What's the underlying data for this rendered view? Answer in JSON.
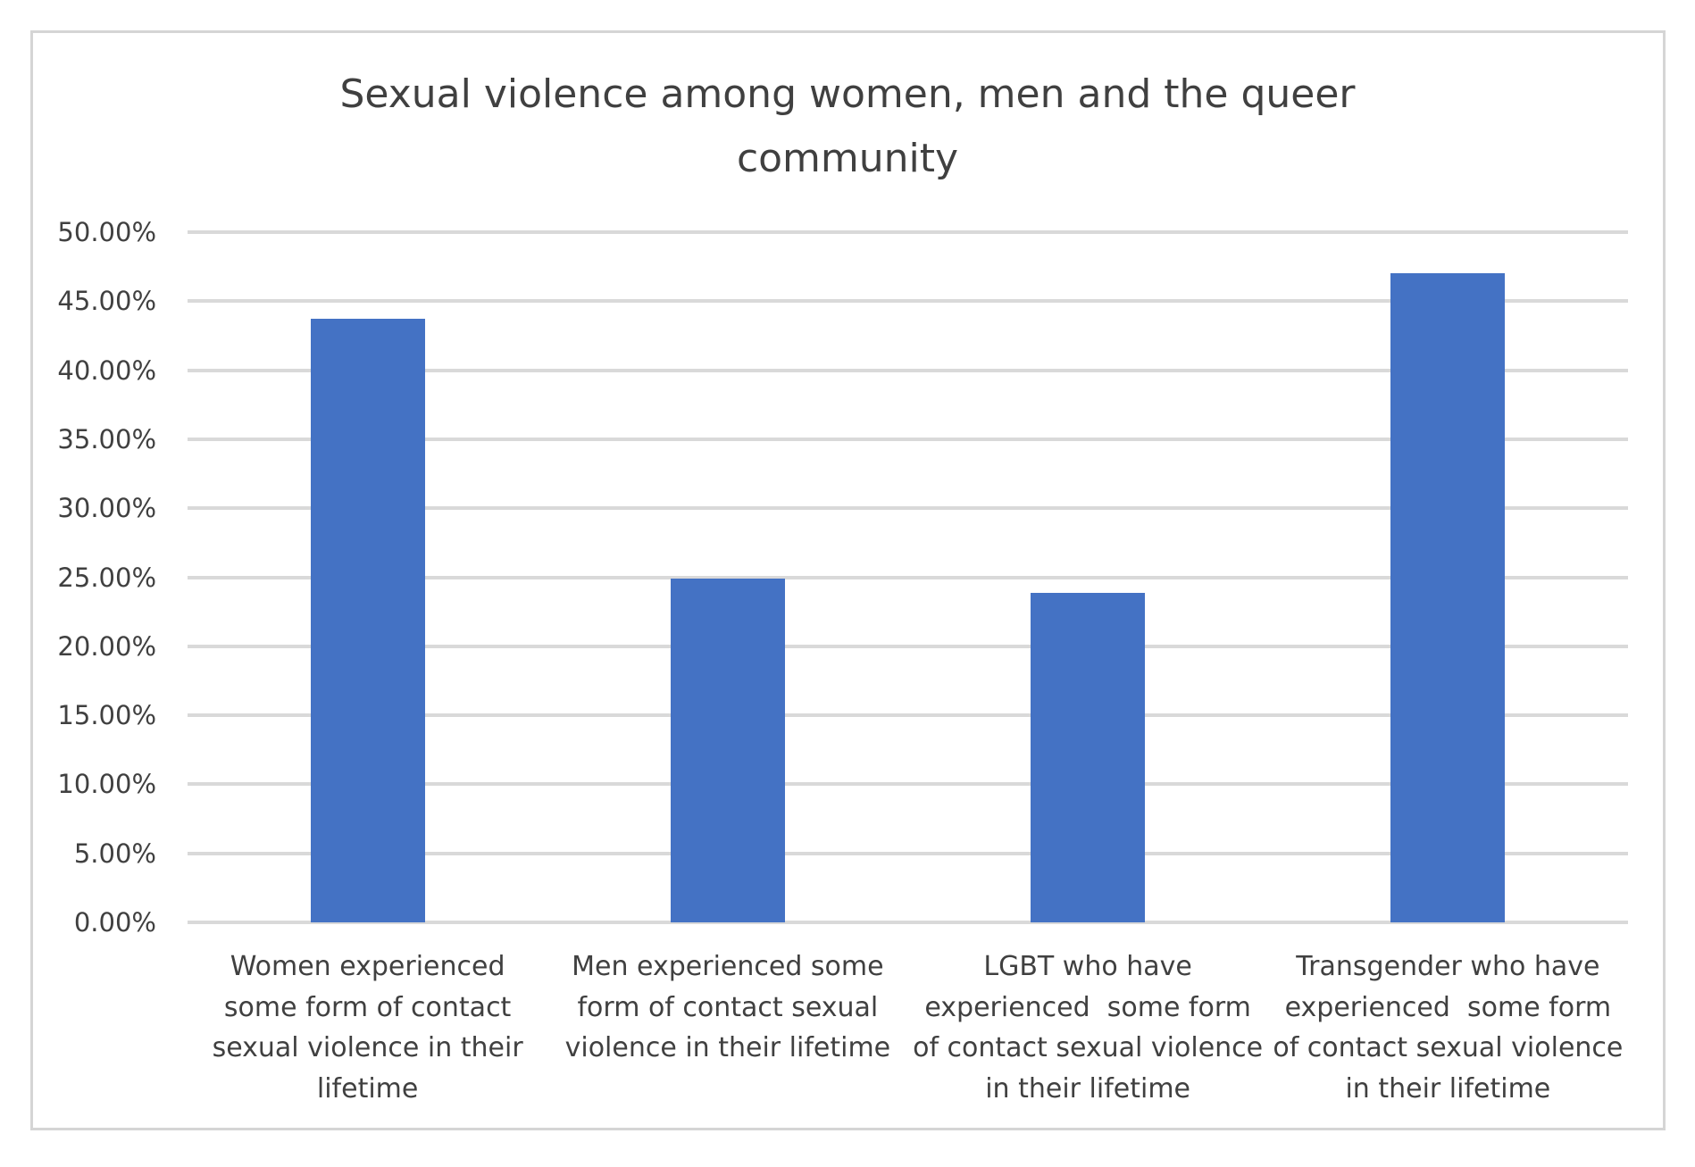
{
  "chart_data": {
    "type": "bar",
    "title": "Sexual violence among women, men and the queer community",
    "title_lines": [
      "Sexual violence among women, men and the queer",
      "community"
    ],
    "xlabel": "",
    "ylabel": "",
    "ylim": [
      0,
      0.5
    ],
    "grid": true,
    "legend": null,
    "yticks": [
      "50.00%",
      "45.00%",
      "40.00%",
      "35.00%",
      "30.00%",
      "25.00%",
      "20.00%",
      "15.00%",
      "10.00%",
      "5.00%",
      "0.00%"
    ],
    "categories": [
      "Women experienced some form of contact sexual violence in their lifetime",
      "Men experienced some form of contact sexual violence in their lifetime",
      "LGBT who have experienced  some form of contact sexual violence in their lifetime",
      "Transgender who have experienced  some form of contact sexual violence in their lifetime"
    ],
    "category_lines": [
      [
        "Women experienced",
        "some form of contact",
        "sexual violence in their",
        "lifetime"
      ],
      [
        "Men experienced some",
        "form of contact sexual",
        "violence in their lifetime"
      ],
      [
        "LGBT who have",
        "experienced  some form",
        "of contact sexual violence",
        "in their lifetime"
      ],
      [
        "Transgender who have",
        "experienced  some form",
        "of contact sexual violence",
        "in their lifetime"
      ]
    ],
    "values": [
      0.437,
      0.249,
      0.239,
      0.47
    ],
    "bar_color": "#4472c4"
  }
}
